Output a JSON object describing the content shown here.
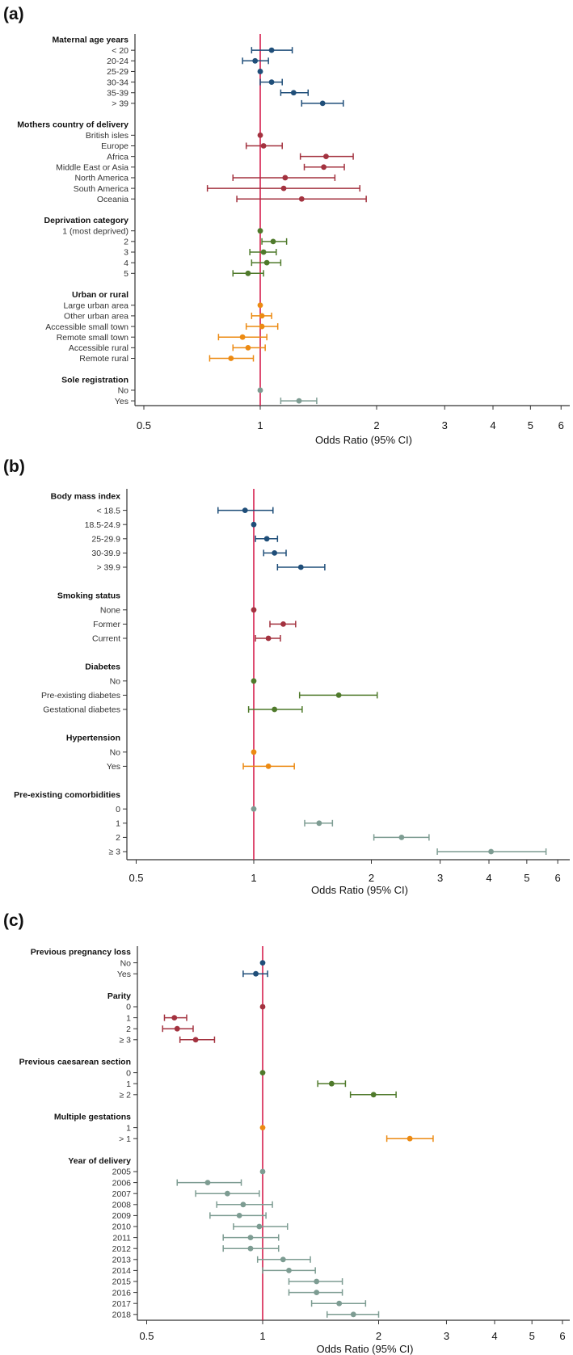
{
  "chart_data": [
    {
      "type": "forest",
      "panel_label": "(a)",
      "xlabel": "Odds Ratio (95% CI)",
      "xscale": "log",
      "xlim": [
        0.48,
        6.3
      ],
      "xticks": [
        0.5,
        1,
        2,
        3,
        4,
        5,
        6
      ],
      "xtick_labels": [
        "0.5",
        "1",
        "2",
        "3",
        "4",
        "5",
        "6"
      ],
      "reference_line": 1,
      "groups": [
        {
          "title": "Maternal age years",
          "color": "#1f4e79",
          "items": [
            {
              "label": "< 20",
              "or": 1.07,
              "lo": 0.95,
              "hi": 1.21
            },
            {
              "label": "20-24",
              "or": 0.97,
              "lo": 0.9,
              "hi": 1.05
            },
            {
              "label": "25-29",
              "or": 1.0,
              "lo": null,
              "hi": null
            },
            {
              "label": "30-34",
              "or": 1.07,
              "lo": 1.0,
              "hi": 1.14
            },
            {
              "label": "35-39",
              "or": 1.22,
              "lo": 1.13,
              "hi": 1.33
            },
            {
              "label": "> 39",
              "or": 1.45,
              "lo": 1.28,
              "hi": 1.64
            }
          ]
        },
        {
          "title": "Mothers country of delivery",
          "color": "#a3323f",
          "items": [
            {
              "label": "British isles",
              "or": 1.0,
              "lo": null,
              "hi": null
            },
            {
              "label": "Europe",
              "or": 1.02,
              "lo": 0.92,
              "hi": 1.14
            },
            {
              "label": "Africa",
              "or": 1.48,
              "lo": 1.27,
              "hi": 1.74
            },
            {
              "label": "Middle East or Asia",
              "or": 1.46,
              "lo": 1.3,
              "hi": 1.65
            },
            {
              "label": "North America",
              "or": 1.16,
              "lo": 0.85,
              "hi": 1.56
            },
            {
              "label": "South America",
              "or": 1.15,
              "lo": 0.73,
              "hi": 1.81
            },
            {
              "label": "Oceania",
              "or": 1.28,
              "lo": 0.87,
              "hi": 1.88
            }
          ]
        },
        {
          "title": "Deprivation category",
          "color": "#4f7a2b",
          "items": [
            {
              "label": "1 (most deprived)",
              "or": 1.0,
              "lo": null,
              "hi": null
            },
            {
              "label": "2",
              "or": 1.08,
              "lo": 1.01,
              "hi": 1.17
            },
            {
              "label": "3",
              "or": 1.02,
              "lo": 0.94,
              "hi": 1.1
            },
            {
              "label": "4",
              "or": 1.04,
              "lo": 0.95,
              "hi": 1.13
            },
            {
              "label": "5",
              "or": 0.93,
              "lo": 0.85,
              "hi": 1.02
            }
          ]
        },
        {
          "title": "Urban or rural",
          "color": "#ec8a12",
          "items": [
            {
              "label": "Large urban area",
              "or": 1.0,
              "lo": null,
              "hi": null
            },
            {
              "label": "Other urban area",
              "or": 1.01,
              "lo": 0.95,
              "hi": 1.07
            },
            {
              "label": "Accessible small town",
              "or": 1.01,
              "lo": 0.92,
              "hi": 1.11
            },
            {
              "label": "Remote small town",
              "or": 0.9,
              "lo": 0.78,
              "hi": 1.04
            },
            {
              "label": "Accessible rural",
              "or": 0.93,
              "lo": 0.85,
              "hi": 1.03
            },
            {
              "label": "Remote rural",
              "or": 0.84,
              "lo": 0.74,
              "hi": 0.96
            }
          ]
        },
        {
          "title": "Sole registration",
          "color": "#7d9c92",
          "items": [
            {
              "label": "No",
              "or": 1.0,
              "lo": null,
              "hi": null
            },
            {
              "label": "Yes",
              "or": 1.26,
              "lo": 1.13,
              "hi": 1.4
            }
          ]
        }
      ]
    },
    {
      "type": "forest",
      "panel_label": "(b)",
      "xlabel": "Odds Ratio (95% CI)",
      "xscale": "log",
      "xlim": [
        0.48,
        6.3
      ],
      "xticks": [
        0.5,
        1,
        2,
        3,
        4,
        5,
        6
      ],
      "xtick_labels": [
        "0.5",
        "1",
        "2",
        "3",
        "4",
        "5",
        "6"
      ],
      "reference_line": 1,
      "groups": [
        {
          "title": "Body mass index",
          "color": "#1f4e79",
          "items": [
            {
              "label": "< 18.5",
              "or": 0.95,
              "lo": 0.81,
              "hi": 1.12
            },
            {
              "label": "18.5-24.9",
              "or": 1.0,
              "lo": null,
              "hi": null
            },
            {
              "label": "25-29.9",
              "or": 1.08,
              "lo": 1.01,
              "hi": 1.15
            },
            {
              "label": "30-39.9",
              "or": 1.13,
              "lo": 1.06,
              "hi": 1.21
            },
            {
              "label": "> 39.9",
              "or": 1.32,
              "lo": 1.15,
              "hi": 1.52
            }
          ]
        },
        {
          "title": "Smoking status",
          "color": "#a3323f",
          "items": [
            {
              "label": "None",
              "or": 1.0,
              "lo": null,
              "hi": null
            },
            {
              "label": "Former",
              "or": 1.19,
              "lo": 1.1,
              "hi": 1.28
            },
            {
              "label": "Current",
              "or": 1.09,
              "lo": 1.01,
              "hi": 1.17
            }
          ]
        },
        {
          "title": "Diabetes",
          "color": "#4f7a2b",
          "items": [
            {
              "label": "No",
              "or": 1.0,
              "lo": null,
              "hi": null
            },
            {
              "label": "Pre-existing diabetes",
              "or": 1.65,
              "lo": 1.31,
              "hi": 2.07
            },
            {
              "label": "Gestational diabetes",
              "or": 1.13,
              "lo": 0.97,
              "hi": 1.33
            }
          ]
        },
        {
          "title": "Hypertension",
          "color": "#ec8a12",
          "items": [
            {
              "label": "No",
              "or": 1.0,
              "lo": null,
              "hi": null
            },
            {
              "label": "Yes",
              "or": 1.09,
              "lo": 0.94,
              "hi": 1.27
            }
          ]
        },
        {
          "title": "Pre-existing comorbidities",
          "color": "#7d9c92",
          "items": [
            {
              "label": "0",
              "or": 1.0,
              "lo": null,
              "hi": null
            },
            {
              "label": "1",
              "or": 1.47,
              "lo": 1.35,
              "hi": 1.59
            },
            {
              "label": "2",
              "or": 2.39,
              "lo": 2.03,
              "hi": 2.81
            },
            {
              "label": "≥ 3",
              "or": 4.05,
              "lo": 2.95,
              "hi": 5.6
            }
          ]
        }
      ]
    },
    {
      "type": "forest",
      "panel_label": "(c)",
      "xlabel": "Odds Ratio (95% CI)",
      "xscale": "log",
      "xlim": [
        0.48,
        6.3
      ],
      "xticks": [
        0.5,
        1,
        2,
        3,
        4,
        5,
        6
      ],
      "xtick_labels": [
        "0.5",
        "1",
        "2",
        "3",
        "4",
        "5",
        "6"
      ],
      "reference_line": 1,
      "groups": [
        {
          "title": "Previous pregnancy loss",
          "color": "#1f4e79",
          "items": [
            {
              "label": "No",
              "or": 1.0,
              "lo": null,
              "hi": null
            },
            {
              "label": "Yes",
              "or": 0.96,
              "lo": 0.89,
              "hi": 1.03
            }
          ]
        },
        {
          "title": "Parity",
          "color": "#a3323f",
          "items": [
            {
              "label": "0",
              "or": 1.0,
              "lo": null,
              "hi": null
            },
            {
              "label": "1",
              "or": 0.59,
              "lo": 0.556,
              "hi": 0.635
            },
            {
              "label": "2",
              "or": 0.6,
              "lo": 0.55,
              "hi": 0.66
            },
            {
              "label": "≥ 3",
              "or": 0.67,
              "lo": 0.61,
              "hi": 0.75
            }
          ]
        },
        {
          "title": "Previous caesarean section",
          "color": "#4f7a2b",
          "items": [
            {
              "label": "0",
              "or": 1.0,
              "lo": null,
              "hi": null
            },
            {
              "label": "1",
              "or": 1.51,
              "lo": 1.39,
              "hi": 1.64
            },
            {
              "label": "≥ 2",
              "or": 1.94,
              "lo": 1.69,
              "hi": 2.22
            }
          ]
        },
        {
          "title": "Multiple gestations",
          "color": "#ec8a12",
          "items": [
            {
              "label": "1",
              "or": 1.0,
              "lo": null,
              "hi": null
            },
            {
              "label": "> 1",
              "or": 2.41,
              "lo": 2.1,
              "hi": 2.77
            }
          ]
        },
        {
          "title": "Year of delivery",
          "color": "#7d9c92",
          "items": [
            {
              "label": "2005",
              "or": 1.0,
              "lo": null,
              "hi": null
            },
            {
              "label": "2006",
              "or": 0.72,
              "lo": 0.6,
              "hi": 0.88
            },
            {
              "label": "2007",
              "or": 0.81,
              "lo": 0.67,
              "hi": 0.98
            },
            {
              "label": "2008",
              "or": 0.89,
              "lo": 0.76,
              "hi": 1.06
            },
            {
              "label": "2009",
              "or": 0.87,
              "lo": 0.73,
              "hi": 1.02
            },
            {
              "label": "2010",
              "or": 0.98,
              "lo": 0.84,
              "hi": 1.16
            },
            {
              "label": "2011",
              "or": 0.93,
              "lo": 0.79,
              "hi": 1.1
            },
            {
              "label": "2012",
              "or": 0.93,
              "lo": 0.79,
              "hi": 1.1
            },
            {
              "label": "2013",
              "or": 1.13,
              "lo": 0.97,
              "hi": 1.33
            },
            {
              "label": "2014",
              "or": 1.17,
              "lo": 1.0,
              "hi": 1.37
            },
            {
              "label": "2015",
              "or": 1.38,
              "lo": 1.17,
              "hi": 1.61
            },
            {
              "label": "2016",
              "or": 1.38,
              "lo": 1.17,
              "hi": 1.61
            },
            {
              "label": "2017",
              "or": 1.58,
              "lo": 1.34,
              "hi": 1.85
            },
            {
              "label": "2018",
              "or": 1.72,
              "lo": 1.47,
              "hi": 2.0
            }
          ]
        }
      ]
    }
  ],
  "reference_line_color": "#d61f4e"
}
